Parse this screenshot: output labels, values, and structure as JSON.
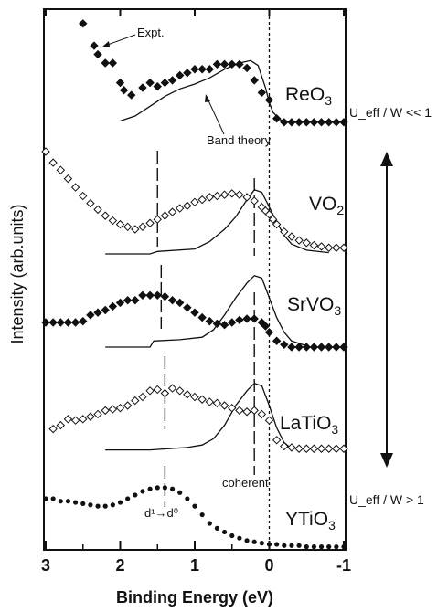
{
  "chart_data": {
    "type": "scatter",
    "xlabel": "Binding Energy (eV)",
    "ylabel": "Intensity (arb.units)",
    "xlim": [
      3,
      -1
    ],
    "x_reversed": true,
    "x_ticks": [
      "3",
      "2",
      "1",
      "0",
      "-1"
    ],
    "y_ticks_shown": false,
    "annotations": {
      "expt": "Expt.",
      "band_theory": "Band theory",
      "coherent": "coherent",
      "d_transition": "d¹→d⁰",
      "ueff_top": "U_eff / W << 1",
      "ueff_bottom": "U_eff / W > 1"
    },
    "fermi_level_x": 0,
    "series": [
      {
        "name": "ReO3",
        "label_main": "ReO",
        "label_sub": "3",
        "marker": "filled-diamond",
        "offset": 4,
        "expt": [
          [
            2.5,
            0.92
          ],
          [
            2.35,
            0.74
          ],
          [
            2.3,
            0.67
          ],
          [
            2.2,
            0.6
          ],
          [
            2.1,
            0.6
          ],
          [
            2.0,
            0.44
          ],
          [
            1.95,
            0.38
          ],
          [
            1.85,
            0.34
          ],
          [
            1.7,
            0.4
          ],
          [
            1.6,
            0.44
          ],
          [
            1.5,
            0.41
          ],
          [
            1.4,
            0.44
          ],
          [
            1.3,
            0.46
          ],
          [
            1.2,
            0.5
          ],
          [
            1.1,
            0.52
          ],
          [
            1.0,
            0.55
          ],
          [
            0.9,
            0.55
          ],
          [
            0.8,
            0.55
          ],
          [
            0.7,
            0.59
          ],
          [
            0.6,
            0.59
          ],
          [
            0.5,
            0.59
          ],
          [
            0.4,
            0.59
          ],
          [
            0.3,
            0.56
          ],
          [
            0.2,
            0.46
          ],
          [
            0.1,
            0.36
          ],
          [
            0.0,
            0.3
          ],
          [
            -0.1,
            0.15
          ],
          [
            -0.2,
            0.12
          ],
          [
            -0.3,
            0.12
          ],
          [
            -0.4,
            0.12
          ],
          [
            -0.5,
            0.12
          ],
          [
            -0.6,
            0.12
          ],
          [
            -0.7,
            0.12
          ],
          [
            -0.8,
            0.12
          ],
          [
            -0.9,
            0.12
          ],
          [
            -1.0,
            0.12
          ]
        ],
        "theory": [
          [
            2.0,
            0.13
          ],
          [
            1.8,
            0.17
          ],
          [
            1.6,
            0.25
          ],
          [
            1.4,
            0.33
          ],
          [
            1.2,
            0.39
          ],
          [
            1.0,
            0.43
          ],
          [
            0.8,
            0.48
          ],
          [
            0.6,
            0.55
          ],
          [
            0.4,
            0.6
          ],
          [
            0.25,
            0.62
          ],
          [
            0.15,
            0.58
          ],
          [
            0.05,
            0.4
          ],
          [
            0.0,
            0.28
          ],
          [
            -0.05,
            0.2
          ],
          [
            -0.15,
            0.14
          ],
          [
            -0.3,
            0.12
          ]
        ]
      },
      {
        "name": "VO2",
        "label_main": "VO",
        "label_sub": "2",
        "marker": "open-diamond",
        "offset": 3,
        "expt": [
          [
            3.0,
            0.83
          ],
          [
            2.9,
            0.74
          ],
          [
            2.8,
            0.68
          ],
          [
            2.7,
            0.61
          ],
          [
            2.6,
            0.54
          ],
          [
            2.5,
            0.47
          ],
          [
            2.4,
            0.41
          ],
          [
            2.3,
            0.36
          ],
          [
            2.2,
            0.31
          ],
          [
            2.1,
            0.27
          ],
          [
            2.0,
            0.24
          ],
          [
            1.9,
            0.22
          ],
          [
            1.8,
            0.2
          ],
          [
            1.7,
            0.22
          ],
          [
            1.6,
            0.25
          ],
          [
            1.5,
            0.28
          ],
          [
            1.4,
            0.31
          ],
          [
            1.3,
            0.34
          ],
          [
            1.2,
            0.37
          ],
          [
            1.1,
            0.39
          ],
          [
            1.0,
            0.42
          ],
          [
            0.9,
            0.44
          ],
          [
            0.8,
            0.46
          ],
          [
            0.7,
            0.47
          ],
          [
            0.6,
            0.48
          ],
          [
            0.5,
            0.49
          ],
          [
            0.4,
            0.48
          ],
          [
            0.3,
            0.46
          ],
          [
            0.2,
            0.43
          ],
          [
            0.1,
            0.38
          ],
          [
            0.05,
            0.35
          ],
          [
            0.0,
            0.32
          ],
          [
            -0.05,
            0.28
          ],
          [
            -0.1,
            0.24
          ],
          [
            -0.2,
            0.18
          ],
          [
            -0.3,
            0.14
          ],
          [
            -0.4,
            0.11
          ],
          [
            -0.5,
            0.09
          ],
          [
            -0.6,
            0.07
          ],
          [
            -0.7,
            0.06
          ],
          [
            -0.8,
            0.05
          ],
          [
            -0.9,
            0.05
          ],
          [
            -1.0,
            0.05
          ]
        ],
        "theory": [
          [
            2.2,
            0.0
          ],
          [
            1.6,
            0.0
          ],
          [
            1.5,
            0.02
          ],
          [
            1.0,
            0.04
          ],
          [
            0.8,
            0.1
          ],
          [
            0.6,
            0.2
          ],
          [
            0.45,
            0.3
          ],
          [
            0.3,
            0.44
          ],
          [
            0.2,
            0.52
          ],
          [
            0.1,
            0.5
          ],
          [
            0.0,
            0.38
          ],
          [
            -0.1,
            0.26
          ],
          [
            -0.2,
            0.15
          ],
          [
            -0.3,
            0.08
          ],
          [
            -0.5,
            0.03
          ],
          [
            -0.8,
            0.01
          ]
        ]
      },
      {
        "name": "SrVO3",
        "label_main": "SrVO",
        "label_sub": "3",
        "marker": "filled-diamond",
        "offset": 2,
        "expt": [
          [
            3.0,
            0.2
          ],
          [
            2.9,
            0.2
          ],
          [
            2.8,
            0.2
          ],
          [
            2.7,
            0.2
          ],
          [
            2.6,
            0.2
          ],
          [
            2.5,
            0.21
          ],
          [
            2.4,
            0.26
          ],
          [
            2.3,
            0.28
          ],
          [
            2.2,
            0.3
          ],
          [
            2.1,
            0.33
          ],
          [
            2.0,
            0.36
          ],
          [
            1.9,
            0.38
          ],
          [
            1.8,
            0.38
          ],
          [
            1.7,
            0.42
          ],
          [
            1.6,
            0.42
          ],
          [
            1.5,
            0.42
          ],
          [
            1.4,
            0.41
          ],
          [
            1.3,
            0.38
          ],
          [
            1.2,
            0.36
          ],
          [
            1.1,
            0.32
          ],
          [
            1.0,
            0.28
          ],
          [
            0.9,
            0.24
          ],
          [
            0.8,
            0.21
          ],
          [
            0.7,
            0.19
          ],
          [
            0.6,
            0.18
          ],
          [
            0.5,
            0.2
          ],
          [
            0.4,
            0.22
          ],
          [
            0.3,
            0.23
          ],
          [
            0.2,
            0.23
          ],
          [
            0.1,
            0.2
          ],
          [
            0.05,
            0.17
          ],
          [
            0.0,
            0.12
          ],
          [
            -0.1,
            0.05
          ],
          [
            -0.2,
            0.02
          ],
          [
            -0.3,
            0.0
          ],
          [
            -0.4,
            0.0
          ],
          [
            -0.5,
            0.0
          ],
          [
            -0.6,
            0.0
          ],
          [
            -0.7,
            0.0
          ],
          [
            -0.8,
            0.0
          ],
          [
            -0.9,
            0.0
          ],
          [
            -1.0,
            0.0
          ]
        ],
        "theory": [
          [
            2.2,
            0.0
          ],
          [
            1.6,
            0.0
          ],
          [
            1.55,
            0.05
          ],
          [
            1.2,
            0.06
          ],
          [
            0.9,
            0.08
          ],
          [
            0.75,
            0.14
          ],
          [
            0.6,
            0.26
          ],
          [
            0.45,
            0.4
          ],
          [
            0.3,
            0.52
          ],
          [
            0.2,
            0.58
          ],
          [
            0.1,
            0.56
          ],
          [
            0.0,
            0.4
          ],
          [
            -0.1,
            0.24
          ],
          [
            -0.2,
            0.12
          ],
          [
            -0.3,
            0.05
          ],
          [
            -0.5,
            0.01
          ]
        ]
      },
      {
        "name": "LaTiO3",
        "label_main": "LaTiO",
        "label_sub": "3",
        "marker": "open-diamond",
        "offset": 1,
        "expt": [
          [
            2.9,
            0.21
          ],
          [
            2.8,
            0.24
          ],
          [
            2.7,
            0.29
          ],
          [
            2.6,
            0.28
          ],
          [
            2.5,
            0.29
          ],
          [
            2.4,
            0.31
          ],
          [
            2.3,
            0.33
          ],
          [
            2.2,
            0.36
          ],
          [
            2.1,
            0.37
          ],
          [
            2.0,
            0.38
          ],
          [
            1.9,
            0.4
          ],
          [
            1.8,
            0.44
          ],
          [
            1.7,
            0.47
          ],
          [
            1.6,
            0.52
          ],
          [
            1.5,
            0.53
          ],
          [
            1.4,
            0.5
          ],
          [
            1.3,
            0.54
          ],
          [
            1.2,
            0.52
          ],
          [
            1.1,
            0.49
          ],
          [
            1.0,
            0.47
          ],
          [
            0.9,
            0.45
          ],
          [
            0.8,
            0.43
          ],
          [
            0.7,
            0.42
          ],
          [
            0.6,
            0.4
          ],
          [
            0.5,
            0.38
          ],
          [
            0.4,
            0.36
          ],
          [
            0.3,
            0.35
          ],
          [
            0.2,
            0.36
          ],
          [
            0.1,
            0.33
          ],
          [
            0.0,
            0.28
          ],
          [
            -0.1,
            0.12
          ],
          [
            -0.2,
            0.07
          ],
          [
            -0.3,
            0.06
          ],
          [
            -0.4,
            0.05
          ],
          [
            -0.5,
            0.05
          ],
          [
            -0.6,
            0.05
          ],
          [
            -0.7,
            0.05
          ],
          [
            -0.8,
            0.05
          ],
          [
            -0.9,
            0.05
          ],
          [
            -1.0,
            0.05
          ]
        ],
        "theory": [
          [
            2.2,
            0.04
          ],
          [
            1.6,
            0.04
          ],
          [
            1.1,
            0.06
          ],
          [
            0.9,
            0.08
          ],
          [
            0.75,
            0.13
          ],
          [
            0.6,
            0.24
          ],
          [
            0.45,
            0.4
          ],
          [
            0.3,
            0.52
          ],
          [
            0.2,
            0.58
          ],
          [
            0.1,
            0.56
          ],
          [
            0.0,
            0.4
          ],
          [
            -0.1,
            0.22
          ],
          [
            -0.2,
            0.1
          ],
          [
            -0.3,
            0.05
          ]
        ]
      },
      {
        "name": "YTiO3",
        "label_main": "YTiO",
        "label_sub": "3",
        "marker": "filled-small",
        "offset": 0,
        "expt": [
          [
            3.0,
            0.4
          ],
          [
            2.9,
            0.4
          ],
          [
            2.8,
            0.38
          ],
          [
            2.7,
            0.38
          ],
          [
            2.6,
            0.37
          ],
          [
            2.5,
            0.36
          ],
          [
            2.4,
            0.35
          ],
          [
            2.3,
            0.34
          ],
          [
            2.2,
            0.34
          ],
          [
            2.1,
            0.35
          ],
          [
            2.0,
            0.37
          ],
          [
            1.9,
            0.4
          ],
          [
            1.8,
            0.43
          ],
          [
            1.7,
            0.46
          ],
          [
            1.6,
            0.48
          ],
          [
            1.5,
            0.49
          ],
          [
            1.4,
            0.49
          ],
          [
            1.3,
            0.48
          ],
          [
            1.2,
            0.45
          ],
          [
            1.1,
            0.4
          ],
          [
            1.0,
            0.34
          ],
          [
            0.9,
            0.27
          ],
          [
            0.8,
            0.2
          ],
          [
            0.7,
            0.16
          ],
          [
            0.6,
            0.13
          ],
          [
            0.5,
            0.1
          ],
          [
            0.4,
            0.08
          ],
          [
            0.3,
            0.06
          ],
          [
            0.2,
            0.05
          ],
          [
            0.1,
            0.04
          ],
          [
            0.0,
            0.03
          ],
          [
            -0.1,
            0.03
          ],
          [
            -0.2,
            0.02
          ],
          [
            -0.3,
            0.02
          ],
          [
            -0.4,
            0.02
          ],
          [
            -0.5,
            0.01
          ],
          [
            -0.6,
            0.01
          ],
          [
            -0.7,
            0.01
          ],
          [
            -0.8,
            0.01
          ],
          [
            -0.9,
            0.01
          ],
          [
            -1.0,
            0.01
          ]
        ],
        "theory": []
      }
    ]
  }
}
